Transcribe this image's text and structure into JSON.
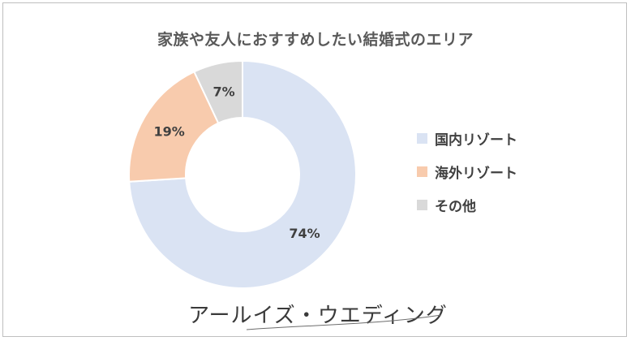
{
  "chart_data": {
    "type": "pie",
    "subtype": "donut",
    "title": "家族や友人におすすめしたい結婚式のエリア",
    "categories": [
      "国内リゾート",
      "海外リゾート",
      "その他"
    ],
    "values": [
      74,
      19,
      7
    ],
    "data_labels": [
      "74%",
      "19%",
      "7%"
    ],
    "colors": [
      "#dae3f3",
      "#f8cbad",
      "#d9d9d9"
    ],
    "legend_position": "right"
  },
  "brand": {
    "text": "アールイズ・ウエディング"
  }
}
